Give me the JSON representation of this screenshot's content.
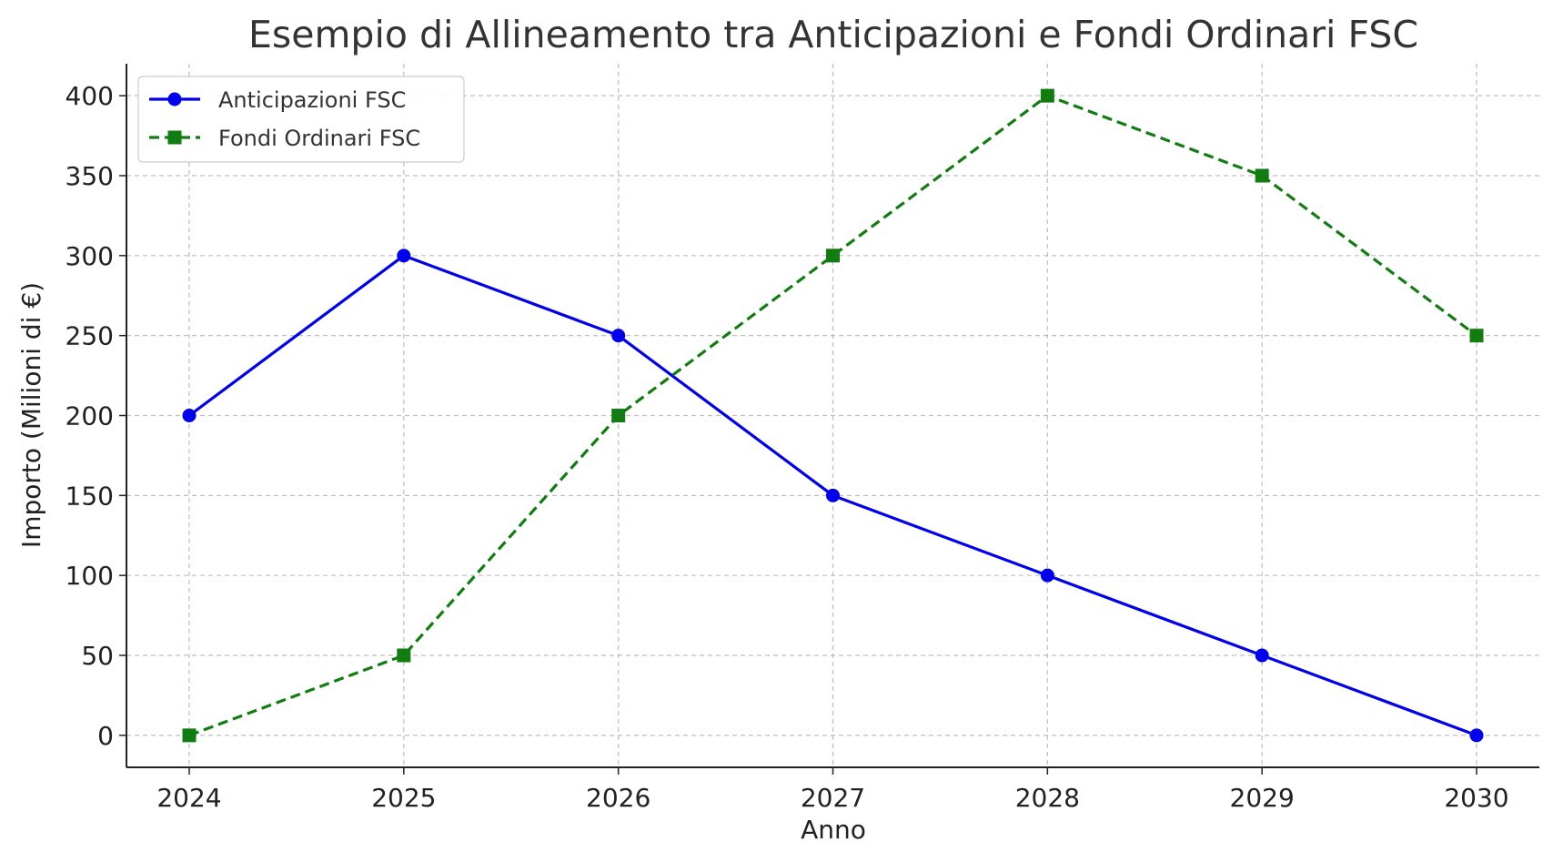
{
  "chart_data": {
    "type": "line",
    "title": "Esempio di Allineamento tra Anticipazioni e Fondi Ordinari FSC",
    "xlabel": "Anno",
    "ylabel": "Importo (Milioni di €)",
    "x": [
      "2024",
      "2025",
      "2026",
      "2027",
      "2028",
      "2029",
      "2030"
    ],
    "ylim": [
      -20,
      420
    ],
    "yticks": [
      0,
      50,
      100,
      150,
      200,
      250,
      300,
      350,
      400
    ],
    "grid": true,
    "legend_position": "top-left",
    "series": [
      {
        "name": "Anticipazioni FSC",
        "values": [
          200,
          300,
          250,
          150,
          100,
          50,
          0
        ],
        "color": "#0000ee",
        "line_style": "solid",
        "marker": "circle"
      },
      {
        "name": "Fondi Ordinari FSC",
        "values": [
          0,
          50,
          200,
          300,
          400,
          350,
          250
        ],
        "color": "#117d11",
        "line_style": "dashed",
        "marker": "square"
      }
    ]
  }
}
